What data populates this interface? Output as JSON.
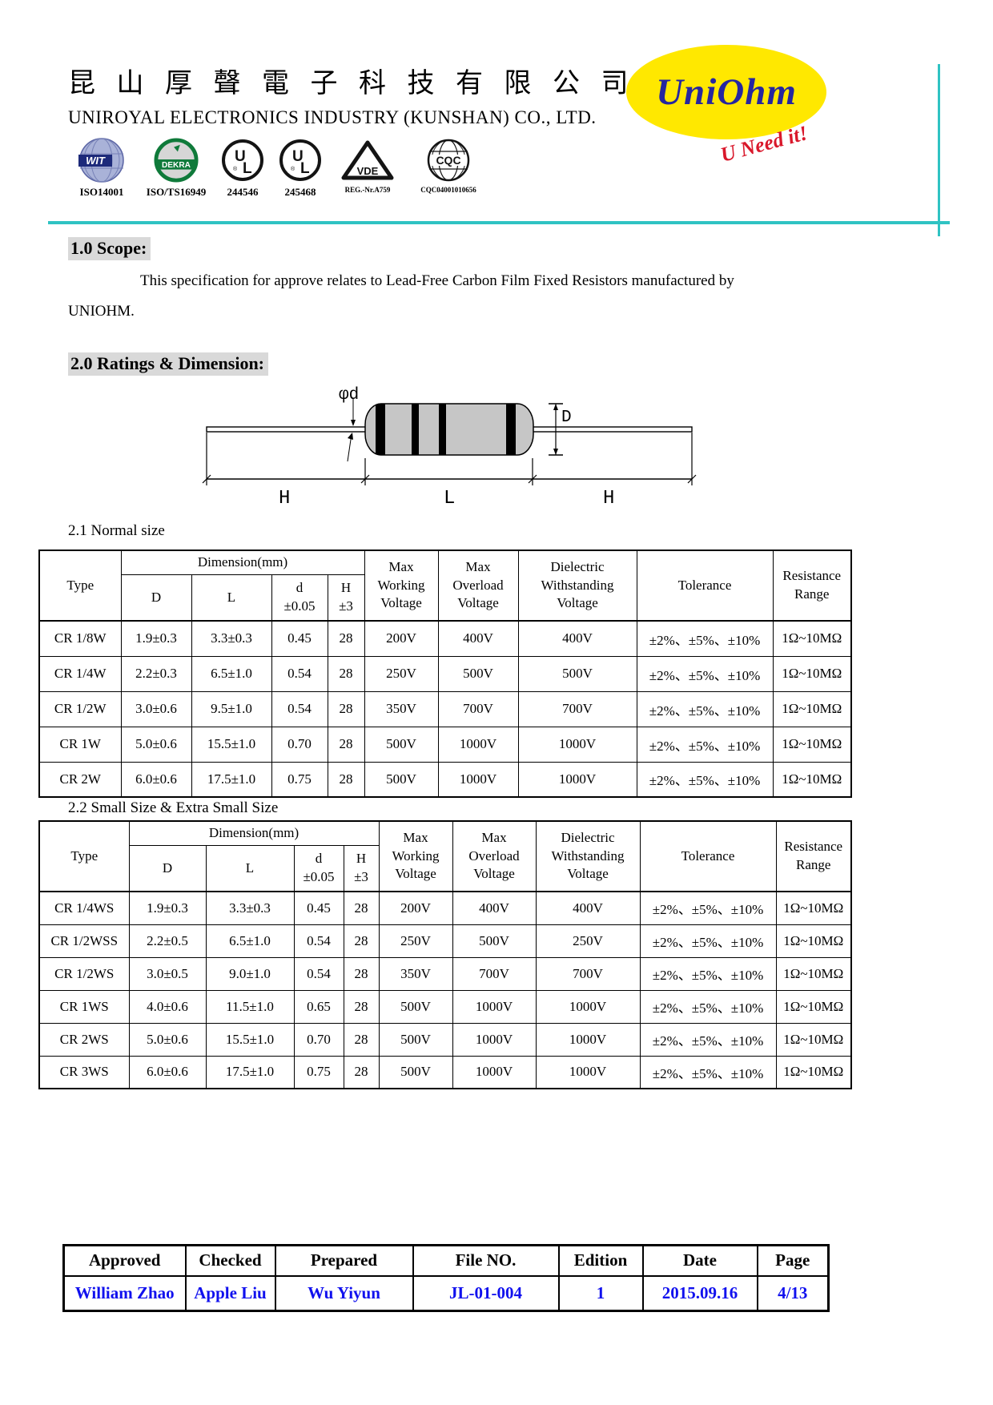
{
  "header": {
    "chinese_title": "昆 山 厚 聲 電 子 科 技 有 限 公 司",
    "company_name": "UNIROYAL ELECTRONICS INDUSTRY (KUNSHAN) CO., LTD.",
    "logo_text": "UniOhm",
    "slogan": "U Need it!",
    "accent_teal": "#2fc3c3",
    "logo_yellow": "#ffe800",
    "logo_blue": "#2626a0",
    "slogan_red": "#d9182b",
    "certifications": [
      {
        "icon": "wit-globe-icon",
        "caption": "ISO14001"
      },
      {
        "icon": "dekra-icon",
        "caption": "ISO/TS16949"
      },
      {
        "icon": "ul-icon",
        "caption": "244546"
      },
      {
        "icon": "ul-icon",
        "caption": "245468"
      },
      {
        "icon": "vde-icon",
        "caption": "REG.-Nr.A759"
      },
      {
        "icon": "cqc-globe-icon",
        "caption": "CQC04001010656"
      }
    ]
  },
  "scope": {
    "heading": "1.0 Scope:",
    "body_line1": "This specification for approve relates to Lead-Free Carbon Film Fixed Resistors manufactured by",
    "body_line2": "UNIOHM."
  },
  "ratings": {
    "heading": "2.0 Ratings & Dimension:"
  },
  "diagram": {
    "label_phi_d": "φd",
    "label_D": "D",
    "label_H_left": "H",
    "label_L": "L",
    "label_H_right": "H"
  },
  "table_normal": {
    "title": "2.1 Normal size",
    "header": {
      "type": "Type",
      "dimension_group": "Dimension(mm)",
      "d_col": "D",
      "l_col": "L",
      "small_d_col": "d\n±0.05",
      "h_col": "H\n±3",
      "max_working": "Max\nWorking\nVoltage",
      "max_overload": "Max\nOverload\nVoltage",
      "dielectric": "Dielectric\nWithstanding\nVoltage",
      "tolerance": "Tolerance",
      "resistance": "Resistance\nRange"
    },
    "rows": [
      [
        "CR 1/8W",
        "1.9±0.3",
        "3.3±0.3",
        "0.45",
        "28",
        "200V",
        "400V",
        "400V",
        "±2%、±5%、±10%",
        "1Ω~10MΩ"
      ],
      [
        "CR 1/4W",
        "2.2±0.3",
        "6.5±1.0",
        "0.54",
        "28",
        "250V",
        "500V",
        "500V",
        "±2%、±5%、±10%",
        "1Ω~10MΩ"
      ],
      [
        "CR 1/2W",
        "3.0±0.6",
        "9.5±1.0",
        "0.54",
        "28",
        "350V",
        "700V",
        "700V",
        "±2%、±5%、±10%",
        "1Ω~10MΩ"
      ],
      [
        "CR 1W",
        "5.0±0.6",
        "15.5±1.0",
        "0.70",
        "28",
        "500V",
        "1000V",
        "1000V",
        "±2%、±5%、±10%",
        "1Ω~10MΩ"
      ],
      [
        "CR 2W",
        "6.0±0.6",
        "17.5±1.0",
        "0.75",
        "28",
        "500V",
        "1000V",
        "1000V",
        "±2%、±5%、±10%",
        "1Ω~10MΩ"
      ]
    ]
  },
  "table_small": {
    "title": "2.2 Small Size & Extra Small Size",
    "header": {
      "type": "Type",
      "dimension_group": "Dimension(mm)",
      "d_col": "D",
      "l_col": "L",
      "small_d_col": "d\n±0.05",
      "h_col": "H\n±3",
      "max_working": "Max\nWorking\nVoltage",
      "max_overload": "Max\nOverload\nVoltage",
      "dielectric": "Dielectric\nWithstanding\nVoltage",
      "tolerance": "Tolerance",
      "resistance": "Resistance\nRange"
    },
    "rows": [
      [
        "CR 1/4WS",
        "1.9±0.3",
        "3.3±0.3",
        "0.45",
        "28",
        "200V",
        "400V",
        "400V",
        "±2%、±5%、±10%",
        "1Ω~10MΩ"
      ],
      [
        "CR 1/2WSS",
        "2.2±0.5",
        "6.5±1.0",
        "0.54",
        "28",
        "250V",
        "500V",
        "250V",
        "±2%、±5%、±10%",
        "1Ω~10MΩ"
      ],
      [
        "CR 1/2WS",
        "3.0±0.5",
        "9.0±1.0",
        "0.54",
        "28",
        "350V",
        "700V",
        "700V",
        "±2%、±5%、±10%",
        "1Ω~10MΩ"
      ],
      [
        "CR 1WS",
        "4.0±0.6",
        "11.5±1.0",
        "0.65",
        "28",
        "500V",
        "1000V",
        "1000V",
        "±2%、±5%、±10%",
        "1Ω~10MΩ"
      ],
      [
        "CR 2WS",
        "5.0±0.6",
        "15.5±1.0",
        "0.70",
        "28",
        "500V",
        "1000V",
        "1000V",
        "±2%、±5%、±10%",
        "1Ω~10MΩ"
      ],
      [
        "CR 3WS",
        "6.0±0.6",
        "17.5±1.0",
        "0.75",
        "28",
        "500V",
        "1000V",
        "1000V",
        "±2%、±5%、±10%",
        "1Ω~10MΩ"
      ]
    ]
  },
  "footer": {
    "headers": [
      "Approved",
      "Checked",
      "Prepared",
      "File NO.",
      "Edition",
      "Date",
      "Page"
    ],
    "values": [
      "William Zhao",
      "Apple Liu",
      "Wu Yiyun",
      "JL-01-004",
      "1",
      "2015.09.16",
      "4/13"
    ],
    "value_color": "#1010ee"
  }
}
